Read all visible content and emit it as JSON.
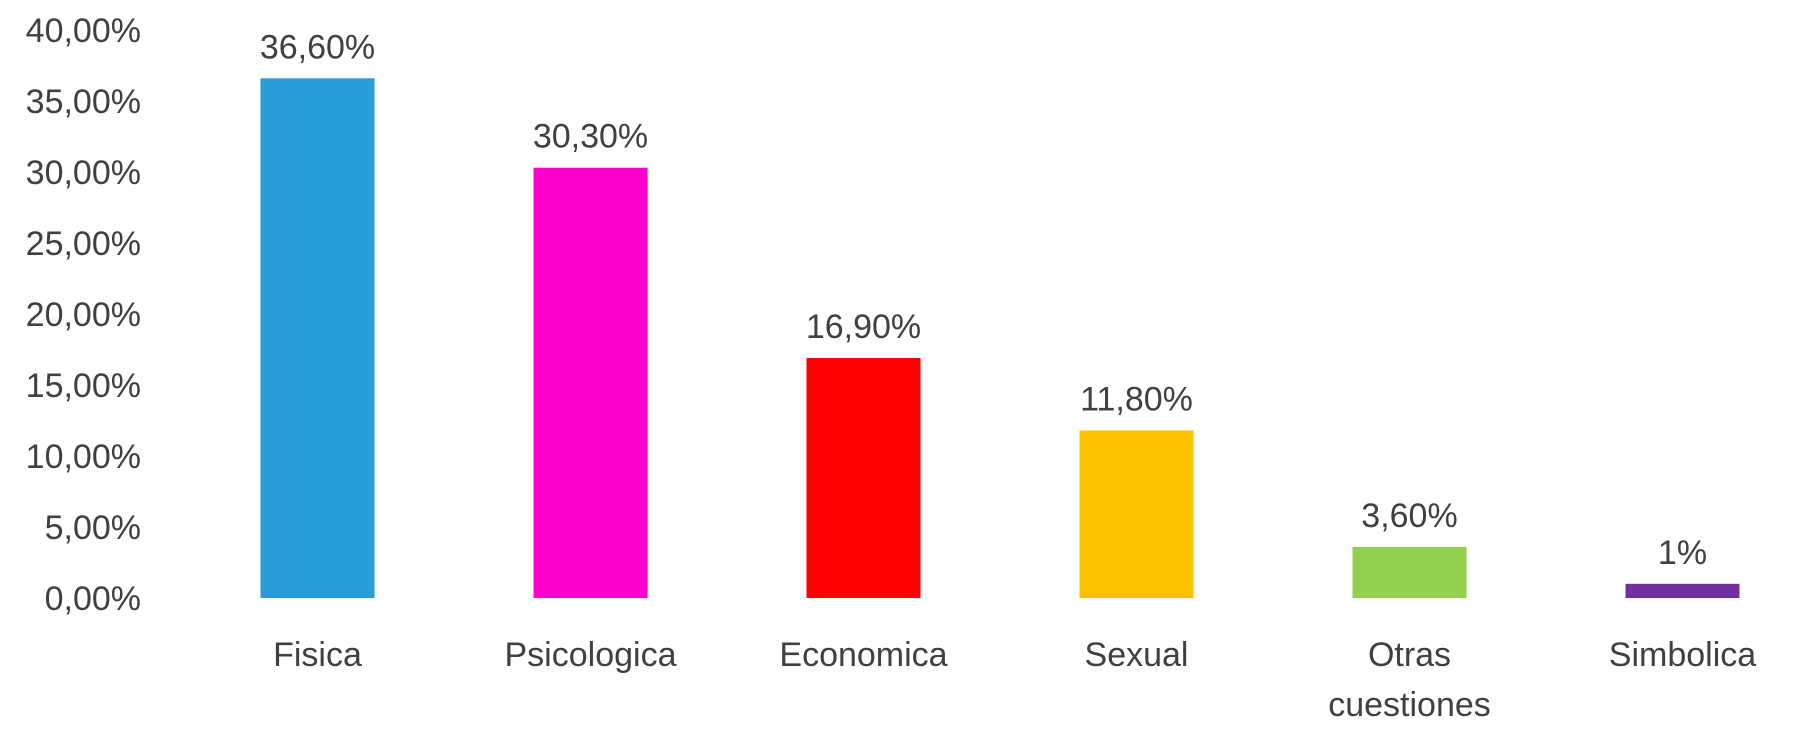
{
  "chart_data": {
    "type": "bar",
    "categories": [
      "Fisica",
      "Psicologica",
      "Economica",
      "Sexual",
      "Otras cuestiones",
      "Simbolica"
    ],
    "values": [
      36.6,
      30.3,
      16.9,
      11.8,
      3.6,
      1
    ],
    "value_labels": [
      "36,60%",
      "30,30%",
      "16,90%",
      "11,80%",
      "3,60%",
      "1%"
    ],
    "colors": [
      "#289dd8",
      "#ff00cc",
      "#ff0000",
      "#ffc000",
      "#92d050",
      "#7030a0"
    ],
    "ylim": [
      0,
      40
    ],
    "yticks": [
      {
        "value": 0,
        "label": "0,00%"
      },
      {
        "value": 5,
        "label": "5,00%"
      },
      {
        "value": 10,
        "label": "10,00%"
      },
      {
        "value": 15,
        "label": "15,00%"
      },
      {
        "value": 20,
        "label": "20,00%"
      },
      {
        "value": 25,
        "label": "25,00%"
      },
      {
        "value": 30,
        "label": "30,00%"
      },
      {
        "value": 35,
        "label": "35,00%"
      },
      {
        "value": 40,
        "label": "40,00%"
      }
    ],
    "grid": false
  }
}
